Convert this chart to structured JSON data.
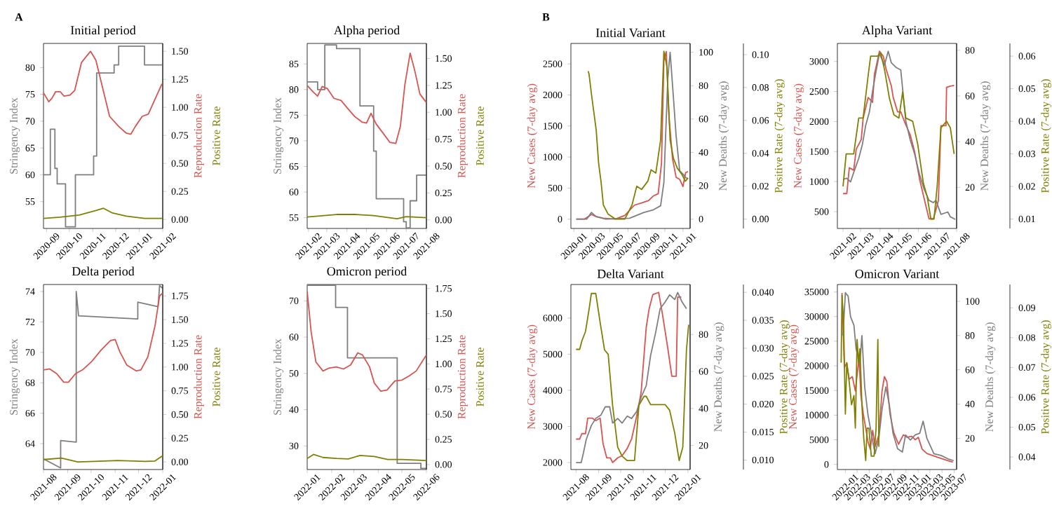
{
  "chart_data": [
    {
      "type": "line",
      "title": "Initial period",
      "ylabel": "Stringency Index",
      "y2label": "Reproduction Rate",
      "y3label": "Positive Rate",
      "annotations": [
        "A"
      ],
      "xlim": [
        "2020-08-28",
        "2021-02-01"
      ],
      "xticks": [
        "2020-09",
        "2020-10",
        "2020-11",
        "2020-12",
        "2021-01",
        "2021-02"
      ],
      "ylim": [
        50,
        84.5
      ],
      "yticks": [
        55,
        60,
        65,
        70,
        75,
        80
      ],
      "y2lim": [
        -0.08,
        1.57
      ],
      "y2ticks": [
        {
          "value": 0,
          "label": "0.00"
        },
        {
          "value": 0.25,
          "label": "0.25"
        },
        {
          "value": 0.5,
          "label": "0.50"
        },
        {
          "value": 0.75,
          "label": "0.75"
        },
        {
          "value": 1,
          "label": "1.00"
        },
        {
          "value": 1.25,
          "label": "1.25"
        },
        {
          "value": 1.5,
          "label": "1.50"
        }
      ],
      "series": [
        {
          "type": "step",
          "color": "#7f7f7f",
          "x": [
            "2020-08-28",
            "2020-09-06",
            "2020-09-12",
            "2020-09-15",
            "2020-09-26",
            "2020-10-09",
            "2020-11-02",
            "2020-11-06",
            "2020-11-29",
            "2020-12-05",
            "2021-01-08",
            "2021-01-31"
          ],
          "values": [
            60,
            68.5,
            61.2,
            58.3,
            50.3,
            60,
            63.5,
            79,
            80.5,
            84,
            80.5,
            80.5
          ]
        },
        {
          "color": "#d9534f",
          "axis": "y2",
          "x": [
            "2020-08-28",
            "2020-09-04",
            "2020-09-08",
            "2020-09-13",
            "2020-09-19",
            "2020-09-24",
            "2020-10-02",
            "2020-10-08",
            "2020-10-17",
            "2020-10-29",
            "2020-11-05",
            "2020-11-14",
            "2020-11-23",
            "2020-12-05",
            "2020-12-15",
            "2020-12-21",
            "2020-12-27",
            "2021-01-05",
            "2021-01-13",
            "2021-01-21",
            "2021-01-31"
          ],
          "values": [
            1.13,
            1.05,
            1.08,
            1.14,
            1.14,
            1.1,
            1.11,
            1.15,
            1.4,
            1.5,
            1.42,
            1.17,
            0.92,
            0.83,
            0.77,
            0.76,
            0.83,
            0.92,
            0.94,
            1.06,
            1.21
          ]
        },
        {
          "color": "#808000",
          "axis": "y2",
          "x": [
            "2020-08-28",
            "2020-09-19",
            "2020-10-14",
            "2020-11-05",
            "2020-11-15",
            "2020-11-26",
            "2020-12-15",
            "2021-01-08",
            "2021-01-31"
          ],
          "values": [
            0.01,
            0.02,
            0.04,
            0.08,
            0.1,
            0.06,
            0.03,
            0.01,
            0.01
          ]
        }
      ]
    },
    {
      "type": "line",
      "title": "Alpha period",
      "ylabel": "Stringency Index",
      "y2label": "Reproduction Rate",
      "y3label": "Positive Rate",
      "xlim": [
        "2021-01-30",
        "2021-08-01"
      ],
      "xticks": [
        "2021-02",
        "2021-03",
        "2021-04",
        "2021-05",
        "2021-06",
        "2021-07",
        "2021-08"
      ],
      "ylim": [
        52.9,
        89
      ],
      "yticks": [
        55,
        60,
        65,
        70,
        75,
        80,
        85
      ],
      "y2lim": [
        -0.08,
        1.64
      ],
      "y2ticks": [
        {
          "value": 0,
          "label": "0.00"
        },
        {
          "value": 0.25,
          "label": "0.25"
        },
        {
          "value": 0.5,
          "label": "0.50"
        },
        {
          "value": 0.75,
          "label": "0.75"
        },
        {
          "value": 1,
          "label": "1.00"
        },
        {
          "value": 1.25,
          "label": "1.25"
        },
        {
          "value": 1.5,
          "label": "1.50"
        }
      ],
      "series": [
        {
          "type": "step",
          "color": "#7f7f7f",
          "x": [
            "2021-01-30",
            "2021-02-15",
            "2021-02-26",
            "2021-03-16",
            "2021-04-21",
            "2021-05-12",
            "2021-05-16",
            "2021-06-27",
            "2021-07-01",
            "2021-07-07",
            "2021-07-17",
            "2021-08-01"
          ],
          "values": [
            81.5,
            80,
            88.7,
            88,
            76.8,
            68,
            58.7,
            54.2,
            53,
            58.3,
            63.3,
            63.3
          ]
        },
        {
          "color": "#d9534f",
          "axis": "y2",
          "x": [
            "2021-01-30",
            "2021-02-08",
            "2021-02-15",
            "2021-02-22",
            "2021-03-02",
            "2021-03-12",
            "2021-03-23",
            "2021-04-03",
            "2021-04-13",
            "2021-04-24",
            "2021-05-01",
            "2021-05-08",
            "2021-05-16",
            "2021-05-26",
            "2021-06-06",
            "2021-06-15",
            "2021-06-22",
            "2021-06-29",
            "2021-07-07",
            "2021-07-14",
            "2021-07-22",
            "2021-08-01"
          ],
          "values": [
            1.25,
            1.19,
            1.15,
            1.24,
            1.22,
            1.13,
            1.11,
            1.03,
            0.96,
            0.91,
            0.9,
            0.99,
            0.89,
            0.81,
            0.72,
            0.71,
            0.87,
            1.26,
            1.55,
            1.39,
            1.17,
            1.09
          ]
        },
        {
          "color": "#808000",
          "axis": "y2",
          "x": [
            "2021-01-30",
            "2021-03-16",
            "2021-04-13",
            "2021-05-12",
            "2021-06-17",
            "2021-07-01",
            "2021-08-01"
          ],
          "values": [
            0.026,
            0.05,
            0.05,
            0.04,
            0.01,
            0.03,
            0.02
          ]
        }
      ]
    },
    {
      "type": "line",
      "title": "Delta period",
      "ylabel": "Stringency Index",
      "y2label": "Reproduction Rate",
      "y3label": "Positive Rate",
      "xlim": [
        "2021-08-01",
        "2022-01-01"
      ],
      "xticks": [
        "2021-08",
        "2021-09",
        "2021-10",
        "2021-11",
        "2021-12",
        "2022-01"
      ],
      "ylim": [
        62.3,
        74.46
      ],
      "yticks": [
        64,
        66,
        68,
        70,
        72,
        74
      ],
      "y2lim": [
        -0.08,
        1.87
      ],
      "y2ticks": [
        {
          "value": 0,
          "label": "0.00"
        },
        {
          "value": 0.25,
          "label": "0.25"
        },
        {
          "value": 0.5,
          "label": "0.50"
        },
        {
          "value": 0.75,
          "label": "0.75"
        },
        {
          "value": 1,
          "label": "1.00"
        },
        {
          "value": 1.25,
          "label": "1.25"
        },
        {
          "value": 1.5,
          "label": "1.50"
        },
        {
          "value": 1.75,
          "label": "1.75"
        }
      ],
      "series": [
        {
          "color": "#7f7f7f",
          "x": [
            "2021-08-01",
            "2021-08-23",
            "2021-08-23",
            "2021-09-12",
            "2021-09-12",
            "2021-09-15",
            "2021-11-30",
            "2021-11-30",
            "2021-12-26",
            "2021-12-28",
            "2022-01-01"
          ],
          "values": [
            63,
            62.4,
            64.2,
            64.1,
            74,
            72.4,
            72.2,
            73.3,
            73,
            74.4,
            74.2
          ]
        },
        {
          "color": "#d9534f",
          "axis": "y2",
          "x": [
            "2021-08-01",
            "2021-08-09",
            "2021-08-18",
            "2021-08-27",
            "2021-09-02",
            "2021-09-11",
            "2021-09-20",
            "2021-10-02",
            "2021-10-14",
            "2021-10-26",
            "2021-11-01",
            "2021-11-07",
            "2021-11-16",
            "2021-11-28",
            "2021-12-04",
            "2021-12-13",
            "2021-12-22",
            "2021-12-28",
            "2022-01-01"
          ],
          "values": [
            0.97,
            0.98,
            0.93,
            0.84,
            0.84,
            0.93,
            0.97,
            1.06,
            1.18,
            1.28,
            1.29,
            1.16,
            1.02,
            0.96,
            0.97,
            1.11,
            1.43,
            1.75,
            1.78
          ]
        },
        {
          "color": "#808000",
          "axis": "y2",
          "x": [
            "2021-08-01",
            "2021-08-24",
            "2021-09-14",
            "2021-10-05",
            "2021-11-04",
            "2021-12-10",
            "2021-12-22",
            "2022-01-01"
          ],
          "values": [
            0.025,
            0.04,
            0,
            0.005,
            0.015,
            0.005,
            0.01,
            0.065
          ]
        }
      ]
    },
    {
      "type": "line",
      "title": "Omicron period",
      "ylabel": "Stringency Index",
      "y2label": "Reproduction Rate",
      "y3label": "Positive Rate",
      "xlim": [
        "2022-01-01",
        "2022-06-01"
      ],
      "xticks": [
        "2022-01",
        "2022-02",
        "2022-03",
        "2022-04",
        "2022-05",
        "2022-06"
      ],
      "ylim": [
        23.5,
        74.5
      ],
      "yticks": [
        30,
        40,
        50,
        60,
        70
      ],
      "y2lim": [
        -0.05,
        1.79
      ],
      "y2ticks": [
        {
          "value": 0,
          "label": "0.00"
        },
        {
          "value": 0.25,
          "label": "0.25"
        },
        {
          "value": 0.5,
          "label": "0.50"
        },
        {
          "value": 0.75,
          "label": "0.75"
        },
        {
          "value": 1,
          "label": "1.00"
        },
        {
          "value": 1.25,
          "label": "1.25"
        },
        {
          "value": 1.5,
          "label": "1.50"
        },
        {
          "value": 1.75,
          "label": "1.75"
        }
      ],
      "series": [
        {
          "type": "step",
          "color": "#7f7f7f",
          "x": [
            "2022-01-01",
            "2022-02-06",
            "2022-02-21",
            "2022-04-25",
            "2022-05-25",
            "2022-06-01"
          ],
          "values": [
            74.3,
            68.2,
            54.3,
            25.2,
            23.8,
            23.8
          ]
        },
        {
          "color": "#d9534f",
          "axis": "y2",
          "x": [
            "2022-01-01",
            "2022-01-06",
            "2022-01-12",
            "2022-01-21",
            "2022-01-29",
            "2022-02-07",
            "2022-02-16",
            "2022-02-25",
            "2022-03-06",
            "2022-03-12",
            "2022-03-21",
            "2022-03-27",
            "2022-04-04",
            "2022-04-12",
            "2022-04-22",
            "2022-05-01",
            "2022-05-10",
            "2022-05-19",
            "2022-06-01"
          ],
          "values": [
            1.72,
            1.32,
            1.02,
            0.93,
            0.96,
            0.97,
            0.95,
            0.99,
            1.11,
            1.09,
            0.97,
            0.81,
            0.73,
            0.74,
            0.83,
            0.84,
            0.88,
            0.93,
            1.09
          ]
        },
        {
          "color": "#808000",
          "axis": "y2",
          "x": [
            "2022-01-01",
            "2022-01-09",
            "2022-01-21",
            "2022-02-07",
            "2022-02-22",
            "2022-03-09",
            "2022-03-27",
            "2022-04-13",
            "2022-05-01",
            "2022-06-01"
          ],
          "values": [
            0.06,
            0.1,
            0.07,
            0.06,
            0.055,
            0.09,
            0.08,
            0.05,
            0.05,
            0.04
          ]
        }
      ]
    },
    {
      "type": "line",
      "title": "Initial Variant",
      "ylabel": "New Cases (7-day avg)",
      "y2label": "New Deaths (7-day avg)",
      "y3label": "Positive Rate (7-day avg)",
      "annotations": [
        "B"
      ],
      "xlim": [
        "2019-12-22",
        "2021-01-25"
      ],
      "xticks": [
        "2020-01",
        "2020-03",
        "2020-05",
        "2020-07",
        "2020-09",
        "2020-11",
        "2021-01"
      ],
      "ylim": [
        -150,
        2830
      ],
      "yticks": [
        0,
        500,
        1000,
        1500,
        2000,
        2500
      ],
      "y2lim": [
        -5.6,
        105.3
      ],
      "y2ticks": [
        0,
        20,
        40,
        60,
        80,
        100
      ],
      "y3lim": [
        -0.0057,
        0.1068
      ],
      "y3ticks": [
        {
          "value": 0,
          "label": "0.00"
        },
        0.02,
        0.04,
        0.06,
        0.08,
        {
          "value": 0.1,
          "label": "0.10"
        }
      ],
      "series": [
        {
          "type": "line",
          "color": "#d9534f",
          "x": [
            "2020-01-09",
            "2020-02-05",
            "2020-02-29",
            "2020-03-16",
            "2020-04-09",
            "2020-05-19",
            "2020-06-20",
            "2020-07-22",
            "2020-08-15",
            "2020-09-08",
            "2020-09-24",
            "2020-10-10",
            "2020-10-21",
            "2020-10-29",
            "2020-11-06",
            "2020-11-15",
            "2020-11-27",
            "2020-12-09",
            "2020-12-21",
            "2021-01-01",
            "2021-01-10",
            "2021-01-18"
          ],
          "values": [
            0,
            0,
            75,
            40,
            15,
            0,
            60,
            225,
            260,
            300,
            375,
            410,
            900,
            2550,
            2700,
            1650,
            975,
            675,
            640,
            525,
            750,
            765
          ]
        },
        {
          "type": "line",
          "color": "#7f7f7f",
          "axis": "y2",
          "x": [
            "2020-01-09",
            "2020-02-13",
            "2020-02-29",
            "2020-03-16",
            "2020-04-17",
            "2020-07-06",
            "2020-08-23",
            "2020-09-24",
            "2020-10-18",
            "2020-10-29",
            "2020-11-11",
            "2020-11-19",
            "2020-11-30",
            "2020-12-09",
            "2020-12-21",
            "2021-01-01",
            "2021-01-10",
            "2021-01-18"
          ],
          "values": [
            0,
            0,
            4,
            1.5,
            0,
            0.5,
            4,
            5.6,
            8,
            22,
            84,
            100,
            73,
            50,
            29,
            27,
            25,
            24
          ]
        },
        {
          "type": "line",
          "color": "#808000",
          "axis": "y3",
          "x": [
            "2020-02-18",
            "2020-02-21",
            "2020-02-29",
            "2020-03-08",
            "2020-03-16",
            "2020-03-24",
            "2020-04-01",
            "2020-04-09",
            "2020-04-25",
            "2020-05-19",
            "2020-06-20",
            "2020-07-14",
            "2020-07-30",
            "2020-08-15",
            "2020-09-05",
            "2020-09-16",
            "2020-10-02",
            "2020-10-18",
            "2020-10-29",
            "2020-11-08",
            "2020-11-19",
            "2020-11-30",
            "2020-12-13",
            "2020-12-29",
            "2021-01-09",
            "2021-01-18"
          ],
          "values": [
            0.09,
            0.088,
            0.076,
            0.065,
            0.054,
            0.034,
            0.023,
            0.0085,
            0.003,
            0,
            0,
            0.0085,
            0.02,
            0.018,
            0.023,
            0.03,
            0.028,
            0.048,
            0.102,
            0.093,
            0.048,
            0.037,
            0.031,
            0.027,
            0.023,
            0.025
          ]
        }
      ]
    },
    {
      "type": "line",
      "title": "Alpha Variant",
      "ylabel": "New Cases (7-day avg)",
      "y2label": "New Deaths (7-day avg)",
      "y3label": "Positive Rate (7-day avg)",
      "xlim": [
        "2021-01-23",
        "2021-08-01"
      ],
      "xticks": [
        "2021-02",
        "2021-03",
        "2021-04",
        "2021-05",
        "2021-06",
        "2021-07",
        "2021-08"
      ],
      "ylim": [
        220,
        3300
      ],
      "yticks": [
        500,
        1000,
        1500,
        2000,
        2500,
        3000
      ],
      "y2lim": [
        2,
        83
      ],
      "y2ticks": [
        20,
        40,
        60,
        80
      ],
      "y3lim": [
        0.0071,
        0.0639
      ],
      "y3ticks": [
        0.01,
        0.02,
        0.03,
        0.04,
        0.05,
        0.06
      ],
      "series": [
        {
          "type": "line",
          "color": "#d9534f",
          "x": [
            "2021-02-01",
            "2021-02-07",
            "2021-02-11",
            "2021-02-18",
            "2021-02-22",
            "2021-03-02",
            "2021-03-05",
            "2021-03-13",
            "2021-03-20",
            "2021-03-23",
            "2021-03-31",
            "2021-04-06",
            "2021-04-11",
            "2021-04-19",
            "2021-04-22",
            "2021-04-29",
            "2021-05-04",
            "2021-05-11",
            "2021-05-19",
            "2021-05-26",
            "2021-06-03",
            "2021-06-10",
            "2021-06-18",
            "2021-06-25",
            "2021-06-29",
            "2021-07-03",
            "2021-07-07",
            "2021-07-15",
            "2021-07-16",
            "2021-07-22",
            "2021-07-28"
          ],
          "values": [
            800,
            800,
            1230,
            1190,
            1540,
            1700,
            2050,
            2400,
            2320,
            2780,
            3170,
            3090,
            2860,
            2590,
            2400,
            2160,
            2160,
            1970,
            1780,
            1500,
            1040,
            730,
            380,
            380,
            530,
            690,
            1930,
            1930,
            2570,
            2590,
            2600
          ]
        },
        {
          "type": "line",
          "color": "#7f7f7f",
          "axis": "y2",
          "x": [
            "2021-02-01",
            "2021-02-07",
            "2021-02-13",
            "2021-02-18",
            "2021-02-26",
            "2021-03-04",
            "2021-03-09",
            "2021-03-15",
            "2021-03-20",
            "2021-03-26",
            "2021-03-31",
            "2021-04-08",
            "2021-04-14",
            "2021-04-19",
            "2021-04-27",
            "2021-05-04",
            "2021-05-12",
            "2021-05-19",
            "2021-05-26",
            "2021-06-03",
            "2021-06-10",
            "2021-06-18",
            "2021-06-25",
            "2021-06-29",
            "2021-07-07",
            "2021-07-18",
            "2021-07-22",
            "2021-07-30"
          ],
          "values": [
            23.5,
            24,
            22.4,
            26.5,
            32.7,
            39,
            47,
            53,
            62,
            71.4,
            78.6,
            73.5,
            79.6,
            74.5,
            72.4,
            71.4,
            49,
            40.8,
            34.7,
            25.5,
            19.4,
            14.3,
            13.3,
            14.3,
            8.2,
            9.2,
            7.1,
            6
          ]
        },
        {
          "type": "line",
          "color": "#808000",
          "axis": "y3",
          "x": [
            "2021-02-01",
            "2021-02-06",
            "2021-02-18",
            "2021-02-26",
            "2021-03-05",
            "2021-03-13",
            "2021-03-17",
            "2021-03-28",
            "2021-04-02",
            "2021-04-08",
            "2021-04-16",
            "2021-04-23",
            "2021-05-01",
            "2021-05-07",
            "2021-05-12",
            "2021-05-23",
            "2021-05-31",
            "2021-06-09",
            "2021-06-15",
            "2021-06-21",
            "2021-06-26",
            "2021-07-01",
            "2021-07-07",
            "2021-07-16",
            "2021-07-22",
            "2021-07-28"
          ],
          "values": [
            0.02,
            0.03,
            0.03,
            0.041,
            0.041,
            0.054,
            0.06,
            0.06,
            0.061,
            0.056,
            0.047,
            0.042,
            0.041,
            0.049,
            0.041,
            0.04,
            0.033,
            0.021,
            0.017,
            0.01,
            0.01,
            0.02,
            0.038,
            0.04,
            0.038,
            0.03
          ]
        }
      ]
    },
    {
      "type": "line",
      "title": "Delta Variant",
      "ylabel": "New Cases (7-day avg)",
      "y2label": "New Deaths (7-day avg)",
      "y3label": "Positive Rate (7-day avg)",
      "xlim": [
        "2021-07-25",
        "2022-01-04"
      ],
      "xticks": [
        "2021-08",
        "2021-09",
        "2021-10",
        "2021-11",
        "2021-12",
        "2022-01"
      ],
      "ylim": [
        1806,
        6929
      ],
      "yticks": [
        2000,
        3000,
        4000,
        5000,
        6000
      ],
      "y2lim": [
        7,
        107
      ],
      "y2ticks": [
        20,
        40,
        60,
        80
      ],
      "y3lim": [
        0.0083,
        0.0414
      ],
      "y3ticks": [
        {
          "value": 0.01,
          "label": "0.010"
        },
        0.015,
        {
          "value": 0.02,
          "label": "0.020"
        },
        0.025,
        {
          "value": 0.03,
          "label": "0.030"
        },
        0.035,
        {
          "value": 0.04,
          "label": "0.040"
        }
      ],
      "series": [
        {
          "type": "line",
          "color": "#d9534f",
          "x": [
            "2021-08-01",
            "2021-08-06",
            "2021-08-09",
            "2021-08-14",
            "2021-08-17",
            "2021-08-23",
            "2021-08-28",
            "2021-09-03",
            "2021-09-07",
            "2021-09-12",
            "2021-09-17",
            "2021-09-20",
            "2021-09-27",
            "2021-10-03",
            "2021-10-10",
            "2021-10-16",
            "2021-10-23",
            "2021-10-29",
            "2021-11-05",
            "2021-11-09",
            "2021-11-14",
            "2021-11-22",
            "2021-11-27",
            "2021-12-04",
            "2021-12-10",
            "2021-12-16",
            "2021-12-18",
            "2021-12-23"
          ],
          "values": [
            2650,
            2650,
            2800,
            2800,
            3230,
            3230,
            3160,
            3230,
            2520,
            2130,
            2130,
            2000,
            2130,
            2190,
            2390,
            2650,
            3290,
            3940,
            5740,
            6260,
            6650,
            6710,
            6130,
            5230,
            4390,
            4390,
            6580,
            6580
          ]
        },
        {
          "type": "line",
          "color": "#7f7f7f",
          "axis": "y2",
          "x": [
            "2021-08-01",
            "2021-08-08",
            "2021-08-11",
            "2021-08-15",
            "2021-08-22",
            "2021-08-28",
            "2021-09-04",
            "2021-09-10",
            "2021-09-16",
            "2021-09-20",
            "2021-09-27",
            "2021-10-03",
            "2021-10-10",
            "2021-10-16",
            "2021-10-23",
            "2021-10-29",
            "2021-11-05",
            "2021-11-11",
            "2021-11-18",
            "2021-11-24",
            "2021-12-01",
            "2021-12-07",
            "2021-12-14",
            "2021-12-18",
            "2021-12-24",
            "2021-12-30"
          ],
          "values": [
            10.7,
            10.7,
            15.7,
            23.3,
            30.8,
            34.6,
            36.4,
            40.9,
            40.9,
            32.1,
            34.6,
            32.1,
            35.9,
            34.6,
            38.4,
            46,
            52.3,
            68.7,
            81.3,
            93.9,
            97.6,
            101.4,
            98.9,
            102.7,
            97.6,
            93.9
          ]
        },
        {
          "type": "line",
          "color": "#808000",
          "axis": "y3",
          "x": [
            "2021-08-01",
            "2021-08-06",
            "2021-08-09",
            "2021-08-14",
            "2021-08-19",
            "2021-08-22",
            "2021-08-28",
            "2021-09-03",
            "2021-09-09",
            "2021-09-14",
            "2021-09-20",
            "2021-09-27",
            "2021-10-03",
            "2021-10-10",
            "2021-10-20",
            "2021-10-26",
            "2021-11-02",
            "2021-11-05",
            "2021-11-11",
            "2021-12-01",
            "2021-12-07",
            "2021-12-14",
            "2021-12-20",
            "2021-12-25",
            "2021-12-30",
            "2022-01-02"
          ],
          "values": [
            0.0298,
            0.0298,
            0.0313,
            0.033,
            0.0371,
            0.0398,
            0.0398,
            0.0346,
            0.0297,
            0.0289,
            0.0198,
            0.0123,
            0.0107,
            0.0099,
            0.0099,
            0.0198,
            0.0214,
            0.0214,
            0.0199,
            0.0199,
            0.0189,
            0.0148,
            0.0099,
            0.0123,
            0.0297,
            0.0342
          ]
        }
      ]
    },
    {
      "type": "line",
      "title": "Omicron Variant",
      "ylabel": "New Cases (7-day avg)",
      "y2label": "New Deaths (7-day avg)",
      "y3label": "Positive Rate (7-day avg)",
      "xlim": [
        "2021-11-22",
        "2023-07-13"
      ],
      "xticks": [
        "2022-01",
        "2022-03",
        "2022-05",
        "2022-07",
        "2022-09",
        "2022-11",
        "2023-01",
        "2023-03",
        "2023-05",
        "2023-07"
      ],
      "ylim": [
        -1040,
        36500
      ],
      "yticks": [
        0,
        5000,
        10000,
        15000,
        20000,
        25000,
        30000,
        35000
      ],
      "y2lim": [
        1.8,
        109.8
      ],
      "y2ticks": [
        20,
        40,
        60,
        80,
        100
      ],
      "y3lim": [
        0.0358,
        0.0978
      ],
      "y3ticks": [
        0.04,
        0.05,
        0.06,
        0.07,
        0.08,
        0.09
      ],
      "series": [
        {
          "type": "line",
          "color": "#d9534f",
          "x": [
            "2021-12-15",
            "2021-12-27",
            "2022-01-08",
            "2022-01-20",
            "2022-02-05",
            "2022-02-20",
            "2022-03-01",
            "2022-03-11",
            "2022-03-20",
            "2022-04-01",
            "2022-04-13",
            "2022-04-25",
            "2022-05-06",
            "2022-05-18",
            "2022-05-30",
            "2022-06-18",
            "2022-07-04",
            "2022-07-16",
            "2022-07-28",
            "2022-08-13",
            "2022-09-01",
            "2022-09-25",
            "2022-10-19",
            "2022-11-07",
            "2022-11-30",
            "2022-12-17",
            "2023-01-02",
            "2023-01-21",
            "2023-02-14",
            "2023-03-21",
            "2023-04-26",
            "2023-05-31",
            "2023-06-24"
          ],
          "values": [
            34800,
            19650,
            20600,
            17300,
            17800,
            14900,
            18200,
            21500,
            14000,
            10200,
            7400,
            4500,
            3100,
            6900,
            3600,
            6000,
            14900,
            17800,
            16800,
            10200,
            6400,
            4100,
            6000,
            5500,
            5700,
            5000,
            5500,
            3100,
            2200,
            1700,
            1200,
            760,
            470
          ]
        },
        {
          "type": "line",
          "color": "#7f7f7f",
          "axis": "y2",
          "x": [
            "2021-12-20",
            "2022-01-01",
            "2022-01-15",
            "2022-01-27",
            "2022-02-13",
            "2022-02-24",
            "2022-03-15",
            "2022-03-25",
            "2022-04-08",
            "2022-04-24",
            "2022-05-11",
            "2022-05-30",
            "2022-06-18",
            "2022-07-04",
            "2022-07-23",
            "2022-08-09",
            "2022-08-28",
            "2022-09-20",
            "2022-10-14",
            "2022-10-30",
            "2022-11-23",
            "2022-12-17",
            "2023-01-09",
            "2023-01-26",
            "2023-02-14",
            "2023-03-21",
            "2023-04-26",
            "2023-05-31",
            "2023-06-28"
          ],
          "values": [
            80,
            105,
            103,
            91,
            86,
            72,
            64,
            80,
            50,
            34,
            23,
            11,
            20,
            37,
            50,
            40,
            23,
            14,
            12,
            22,
            19,
            22,
            23,
            30,
            20,
            11,
            10,
            8,
            7
          ]
        },
        {
          "type": "line",
          "color": "#808000",
          "axis": "y3",
          "x": [
            "2021-12-11",
            "2021-12-15",
            "2021-12-23",
            "2022-01-01",
            "2022-01-08",
            "2022-01-20",
            "2022-02-01",
            "2022-02-13",
            "2022-02-20",
            "2022-03-01",
            "2022-03-08",
            "2022-03-15",
            "2022-03-25",
            "2022-04-03",
            "2022-04-13",
            "2022-04-20",
            "2022-04-29",
            "2022-05-11",
            "2022-05-25",
            "2022-06-04",
            "2022-06-13",
            "2022-06-18"
          ],
          "values": [
            0.0716,
            0.0942,
            0.0856,
            0.0544,
            0.0716,
            0.0653,
            0.0575,
            0.0606,
            0.0497,
            0.0794,
            0.0716,
            0.0763,
            0.0575,
            0.0466,
            0.0388,
            0.0497,
            0.0497,
            0.0403,
            0.0403,
            0.0497,
            0.0794,
            0.0434
          ]
        }
      ]
    }
  ]
}
